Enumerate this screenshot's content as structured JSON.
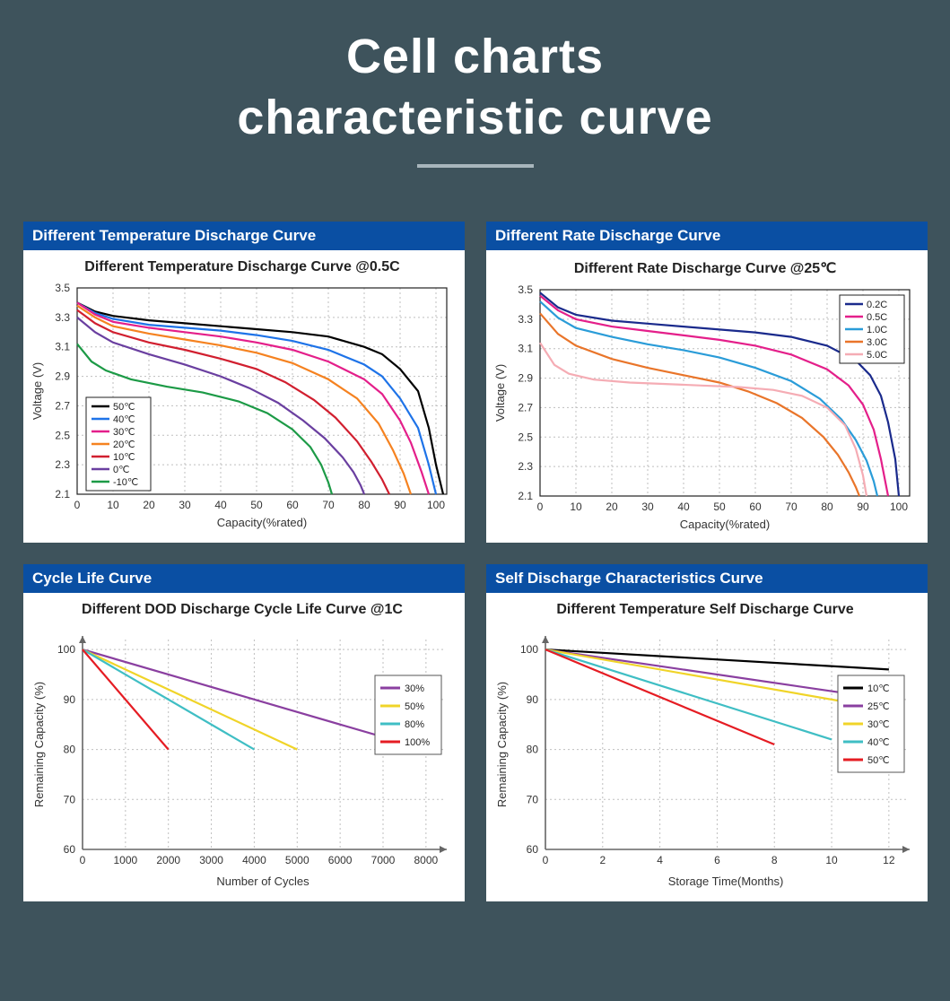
{
  "header": {
    "title_line1": "Cell  charts",
    "title_line2": "characteristic curve"
  },
  "panels": {
    "temp_discharge": {
      "bar_title": "Different Temperature Discharge Curve",
      "subtitle": "Different Temperature Discharge Curve @0.5C",
      "type": "line",
      "background_color": "#ffffff",
      "grid_color": "#bfbfbf",
      "box_color": "#222222",
      "xlabel": "Capacity(%rated)",
      "ylabel": "Voltage (V)",
      "xlim": [
        0,
        103
      ],
      "xtick_step": 10,
      "ylim": [
        2.1,
        3.5
      ],
      "ytick_step": 0.2,
      "legend_pos": "bottom-left",
      "line_width": 2.2,
      "series": [
        {
          "name": "50℃",
          "color": "#000000",
          "x": [
            0,
            5,
            10,
            20,
            30,
            40,
            50,
            60,
            70,
            80,
            85,
            90,
            95,
            98,
            100,
            102
          ],
          "y": [
            3.4,
            3.34,
            3.31,
            3.28,
            3.26,
            3.24,
            3.22,
            3.2,
            3.17,
            3.1,
            3.05,
            2.95,
            2.8,
            2.55,
            2.3,
            2.1
          ]
        },
        {
          "name": "40℃",
          "color": "#1e73e8",
          "x": [
            0,
            5,
            10,
            20,
            30,
            40,
            50,
            60,
            70,
            80,
            85,
            90,
            95,
            98,
            100
          ],
          "y": [
            3.4,
            3.33,
            3.29,
            3.25,
            3.23,
            3.21,
            3.18,
            3.14,
            3.08,
            2.98,
            2.9,
            2.75,
            2.55,
            2.3,
            2.1
          ]
        },
        {
          "name": "30℃",
          "color": "#e41f8a",
          "x": [
            0,
            5,
            10,
            20,
            30,
            40,
            50,
            60,
            70,
            80,
            85,
            90,
            93,
            96,
            98
          ],
          "y": [
            3.4,
            3.32,
            3.27,
            3.23,
            3.2,
            3.17,
            3.13,
            3.08,
            3.0,
            2.88,
            2.78,
            2.6,
            2.45,
            2.25,
            2.1
          ]
        },
        {
          "name": "20℃",
          "color": "#f58220",
          "x": [
            0,
            5,
            10,
            20,
            30,
            40,
            50,
            60,
            70,
            78,
            84,
            88,
            91,
            93
          ],
          "y": [
            3.38,
            3.3,
            3.24,
            3.19,
            3.15,
            3.11,
            3.06,
            2.99,
            2.88,
            2.75,
            2.58,
            2.4,
            2.24,
            2.1
          ]
        },
        {
          "name": "10℃",
          "color": "#d11f2f",
          "x": [
            0,
            5,
            10,
            20,
            30,
            40,
            50,
            58,
            66,
            72,
            78,
            82,
            85,
            87
          ],
          "y": [
            3.35,
            3.26,
            3.2,
            3.13,
            3.08,
            3.02,
            2.95,
            2.86,
            2.74,
            2.62,
            2.46,
            2.32,
            2.2,
            2.1
          ]
        },
        {
          "name": "0℃",
          "color": "#6a3fa0",
          "x": [
            0,
            5,
            10,
            20,
            30,
            40,
            48,
            56,
            63,
            69,
            74,
            77,
            79,
            80
          ],
          "y": [
            3.3,
            3.2,
            3.13,
            3.05,
            2.98,
            2.9,
            2.82,
            2.72,
            2.6,
            2.48,
            2.35,
            2.25,
            2.16,
            2.1
          ]
        },
        {
          "name": "-10℃",
          "color": "#1c9a46",
          "x": [
            0,
            4,
            8,
            15,
            25,
            35,
            45,
            53,
            60,
            65,
            68,
            70,
            71
          ],
          "y": [
            3.12,
            3.0,
            2.94,
            2.88,
            2.83,
            2.79,
            2.73,
            2.65,
            2.54,
            2.42,
            2.3,
            2.18,
            2.1
          ]
        }
      ]
    },
    "rate_discharge": {
      "bar_title": "Different Rate Discharge Curve",
      "subtitle": "Different Rate Discharge Curve @25℃",
      "type": "line",
      "background_color": "#ffffff",
      "grid_color": "#bfbfbf",
      "box_color": "#222222",
      "xlabel": "Capacity(%rated)",
      "ylabel": "Voltage (V)",
      "xlim": [
        0,
        103
      ],
      "xtick_step": 10,
      "ylim": [
        2.1,
        3.5
      ],
      "ytick_step": 0.2,
      "legend_pos": "top-right",
      "line_width": 2.2,
      "series": [
        {
          "name": "0.2C",
          "color": "#1a2a8c",
          "x": [
            0,
            5,
            10,
            20,
            30,
            40,
            50,
            60,
            70,
            80,
            88,
            92,
            95,
            97,
            99,
            100
          ],
          "y": [
            3.48,
            3.38,
            3.33,
            3.29,
            3.27,
            3.25,
            3.23,
            3.21,
            3.18,
            3.12,
            3.02,
            2.92,
            2.78,
            2.6,
            2.35,
            2.1
          ]
        },
        {
          "name": "0.5C",
          "color": "#e41f8a",
          "x": [
            0,
            5,
            10,
            20,
            30,
            40,
            50,
            60,
            70,
            80,
            86,
            90,
            93,
            95,
            97
          ],
          "y": [
            3.46,
            3.36,
            3.3,
            3.25,
            3.22,
            3.19,
            3.16,
            3.12,
            3.06,
            2.96,
            2.85,
            2.72,
            2.55,
            2.35,
            2.1
          ]
        },
        {
          "name": "1.0C",
          "color": "#2a9cd8",
          "x": [
            0,
            5,
            10,
            20,
            30,
            40,
            50,
            60,
            70,
            78,
            84,
            88,
            91,
            93,
            94
          ],
          "y": [
            3.42,
            3.31,
            3.24,
            3.18,
            3.13,
            3.09,
            3.04,
            2.97,
            2.88,
            2.76,
            2.62,
            2.48,
            2.34,
            2.2,
            2.1
          ]
        },
        {
          "name": "3.0C",
          "color": "#e9752a",
          "x": [
            0,
            5,
            10,
            20,
            30,
            40,
            50,
            58,
            66,
            73,
            79,
            83,
            86,
            88,
            89
          ],
          "y": [
            3.34,
            3.2,
            3.12,
            3.03,
            2.97,
            2.92,
            2.87,
            2.81,
            2.73,
            2.63,
            2.5,
            2.38,
            2.26,
            2.16,
            2.1
          ]
        },
        {
          "name": "5.0C",
          "color": "#f5acb4",
          "x": [
            0,
            4,
            8,
            15,
            25,
            35,
            45,
            55,
            65,
            73,
            80,
            85,
            88,
            90,
            91
          ],
          "y": [
            3.14,
            2.99,
            2.93,
            2.89,
            2.87,
            2.86,
            2.85,
            2.84,
            2.82,
            2.78,
            2.7,
            2.58,
            2.42,
            2.24,
            2.1
          ]
        }
      ]
    },
    "cycle_life": {
      "bar_title": "Cycle Life Curve",
      "subtitle": "Different DOD Discharge Cycle Life Curve @1C",
      "type": "line",
      "background_color": "#ffffff",
      "grid_color": "#bfbfbf",
      "axis_color": "#666666",
      "xlabel": "Number of Cycles",
      "ylabel": "Remaining Capacity (%)",
      "xlim": [
        0,
        8400
      ],
      "xtick_step": 1000,
      "xtick_max": 8000,
      "ylim": [
        60,
        102
      ],
      "ytick_step": 10,
      "ytick_max": 100,
      "legend_pos": "right",
      "line_width": 2.2,
      "series": [
        {
          "name": "30%",
          "color": "#8a3fa0",
          "x": [
            0,
            8000
          ],
          "y": [
            100,
            80
          ]
        },
        {
          "name": "50%",
          "color": "#f0d428",
          "x": [
            0,
            5000
          ],
          "y": [
            100,
            80
          ]
        },
        {
          "name": "80%",
          "color": "#3fbec4",
          "x": [
            0,
            4000
          ],
          "y": [
            100,
            80
          ]
        },
        {
          "name": "100%",
          "color": "#e51c23",
          "x": [
            0,
            2000
          ],
          "y": [
            100,
            80
          ]
        }
      ]
    },
    "self_discharge": {
      "bar_title": "Self Discharge Characteristics Curve",
      "subtitle": "Different Temperature Self Discharge Curve",
      "type": "line",
      "background_color": "#ffffff",
      "grid_color": "#bfbfbf",
      "axis_color": "#666666",
      "xlabel": "Storage Time(Months)",
      "ylabel": "Remaining Capacity (%)",
      "xlim": [
        0,
        12.6
      ],
      "xtick_step": 2,
      "xtick_max": 12,
      "ylim": [
        60,
        102
      ],
      "ytick_step": 10,
      "ytick_max": 100,
      "legend_pos": "right",
      "line_width": 2.2,
      "series": [
        {
          "name": "10℃",
          "color": "#000000",
          "x": [
            0,
            12
          ],
          "y": [
            100,
            96
          ]
        },
        {
          "name": "25℃",
          "color": "#8a3fa0",
          "x": [
            0,
            12
          ],
          "y": [
            100,
            90
          ]
        },
        {
          "name": "30℃",
          "color": "#f0d428",
          "x": [
            0,
            12
          ],
          "y": [
            100,
            88
          ]
        },
        {
          "name": "40℃",
          "color": "#3fbec4",
          "x": [
            0,
            10
          ],
          "y": [
            100,
            82
          ]
        },
        {
          "name": "50℃",
          "color": "#e51c23",
          "x": [
            0,
            8
          ],
          "y": [
            100,
            81
          ]
        }
      ]
    }
  }
}
